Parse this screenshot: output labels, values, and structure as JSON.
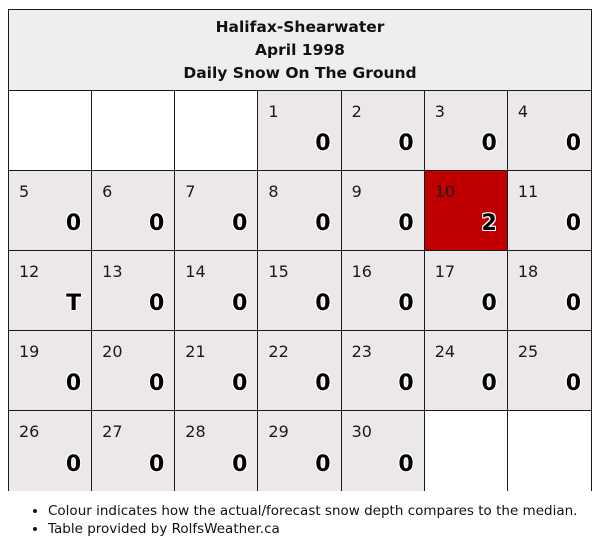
{
  "header": {
    "station": "Halifax-Shearwater",
    "month": "April 1998",
    "metric": "Daily Snow On The Ground"
  },
  "calendar": {
    "leading_blank_days": 3,
    "days": [
      {
        "day": "1",
        "value": "0",
        "status": "normal"
      },
      {
        "day": "2",
        "value": "0",
        "status": "normal"
      },
      {
        "day": "3",
        "value": "0",
        "status": "normal"
      },
      {
        "day": "4",
        "value": "0",
        "status": "normal"
      },
      {
        "day": "5",
        "value": "0",
        "status": "normal"
      },
      {
        "day": "6",
        "value": "0",
        "status": "normal"
      },
      {
        "day": "7",
        "value": "0",
        "status": "normal"
      },
      {
        "day": "8",
        "value": "0",
        "status": "normal"
      },
      {
        "day": "9",
        "value": "0",
        "status": "normal"
      },
      {
        "day": "10",
        "value": "2",
        "status": "above"
      },
      {
        "day": "11",
        "value": "0",
        "status": "normal"
      },
      {
        "day": "12",
        "value": "T",
        "status": "normal"
      },
      {
        "day": "13",
        "value": "0",
        "status": "normal"
      },
      {
        "day": "14",
        "value": "0",
        "status": "normal"
      },
      {
        "day": "15",
        "value": "0",
        "status": "normal"
      },
      {
        "day": "16",
        "value": "0",
        "status": "normal"
      },
      {
        "day": "17",
        "value": "0",
        "status": "normal"
      },
      {
        "day": "18",
        "value": "0",
        "status": "normal"
      },
      {
        "day": "19",
        "value": "0",
        "status": "normal"
      },
      {
        "day": "20",
        "value": "0",
        "status": "normal"
      },
      {
        "day": "21",
        "value": "0",
        "status": "normal"
      },
      {
        "day": "22",
        "value": "0",
        "status": "normal"
      },
      {
        "day": "23",
        "value": "0",
        "status": "normal"
      },
      {
        "day": "24",
        "value": "0",
        "status": "normal"
      },
      {
        "day": "25",
        "value": "0",
        "status": "normal"
      },
      {
        "day": "26",
        "value": "0",
        "status": "normal"
      },
      {
        "day": "27",
        "value": "0",
        "status": "normal"
      },
      {
        "day": "28",
        "value": "0",
        "status": "normal"
      },
      {
        "day": "29",
        "value": "0",
        "status": "normal"
      },
      {
        "day": "30",
        "value": "0",
        "status": "normal"
      }
    ],
    "colors": {
      "normal": "#ece7e8",
      "above": "#c00000",
      "blank": "#ffffff"
    }
  },
  "notes": [
    "Colour indicates how the actual/forecast snow depth compares to the median.",
    "Table provided by RolfsWeather.ca"
  ]
}
